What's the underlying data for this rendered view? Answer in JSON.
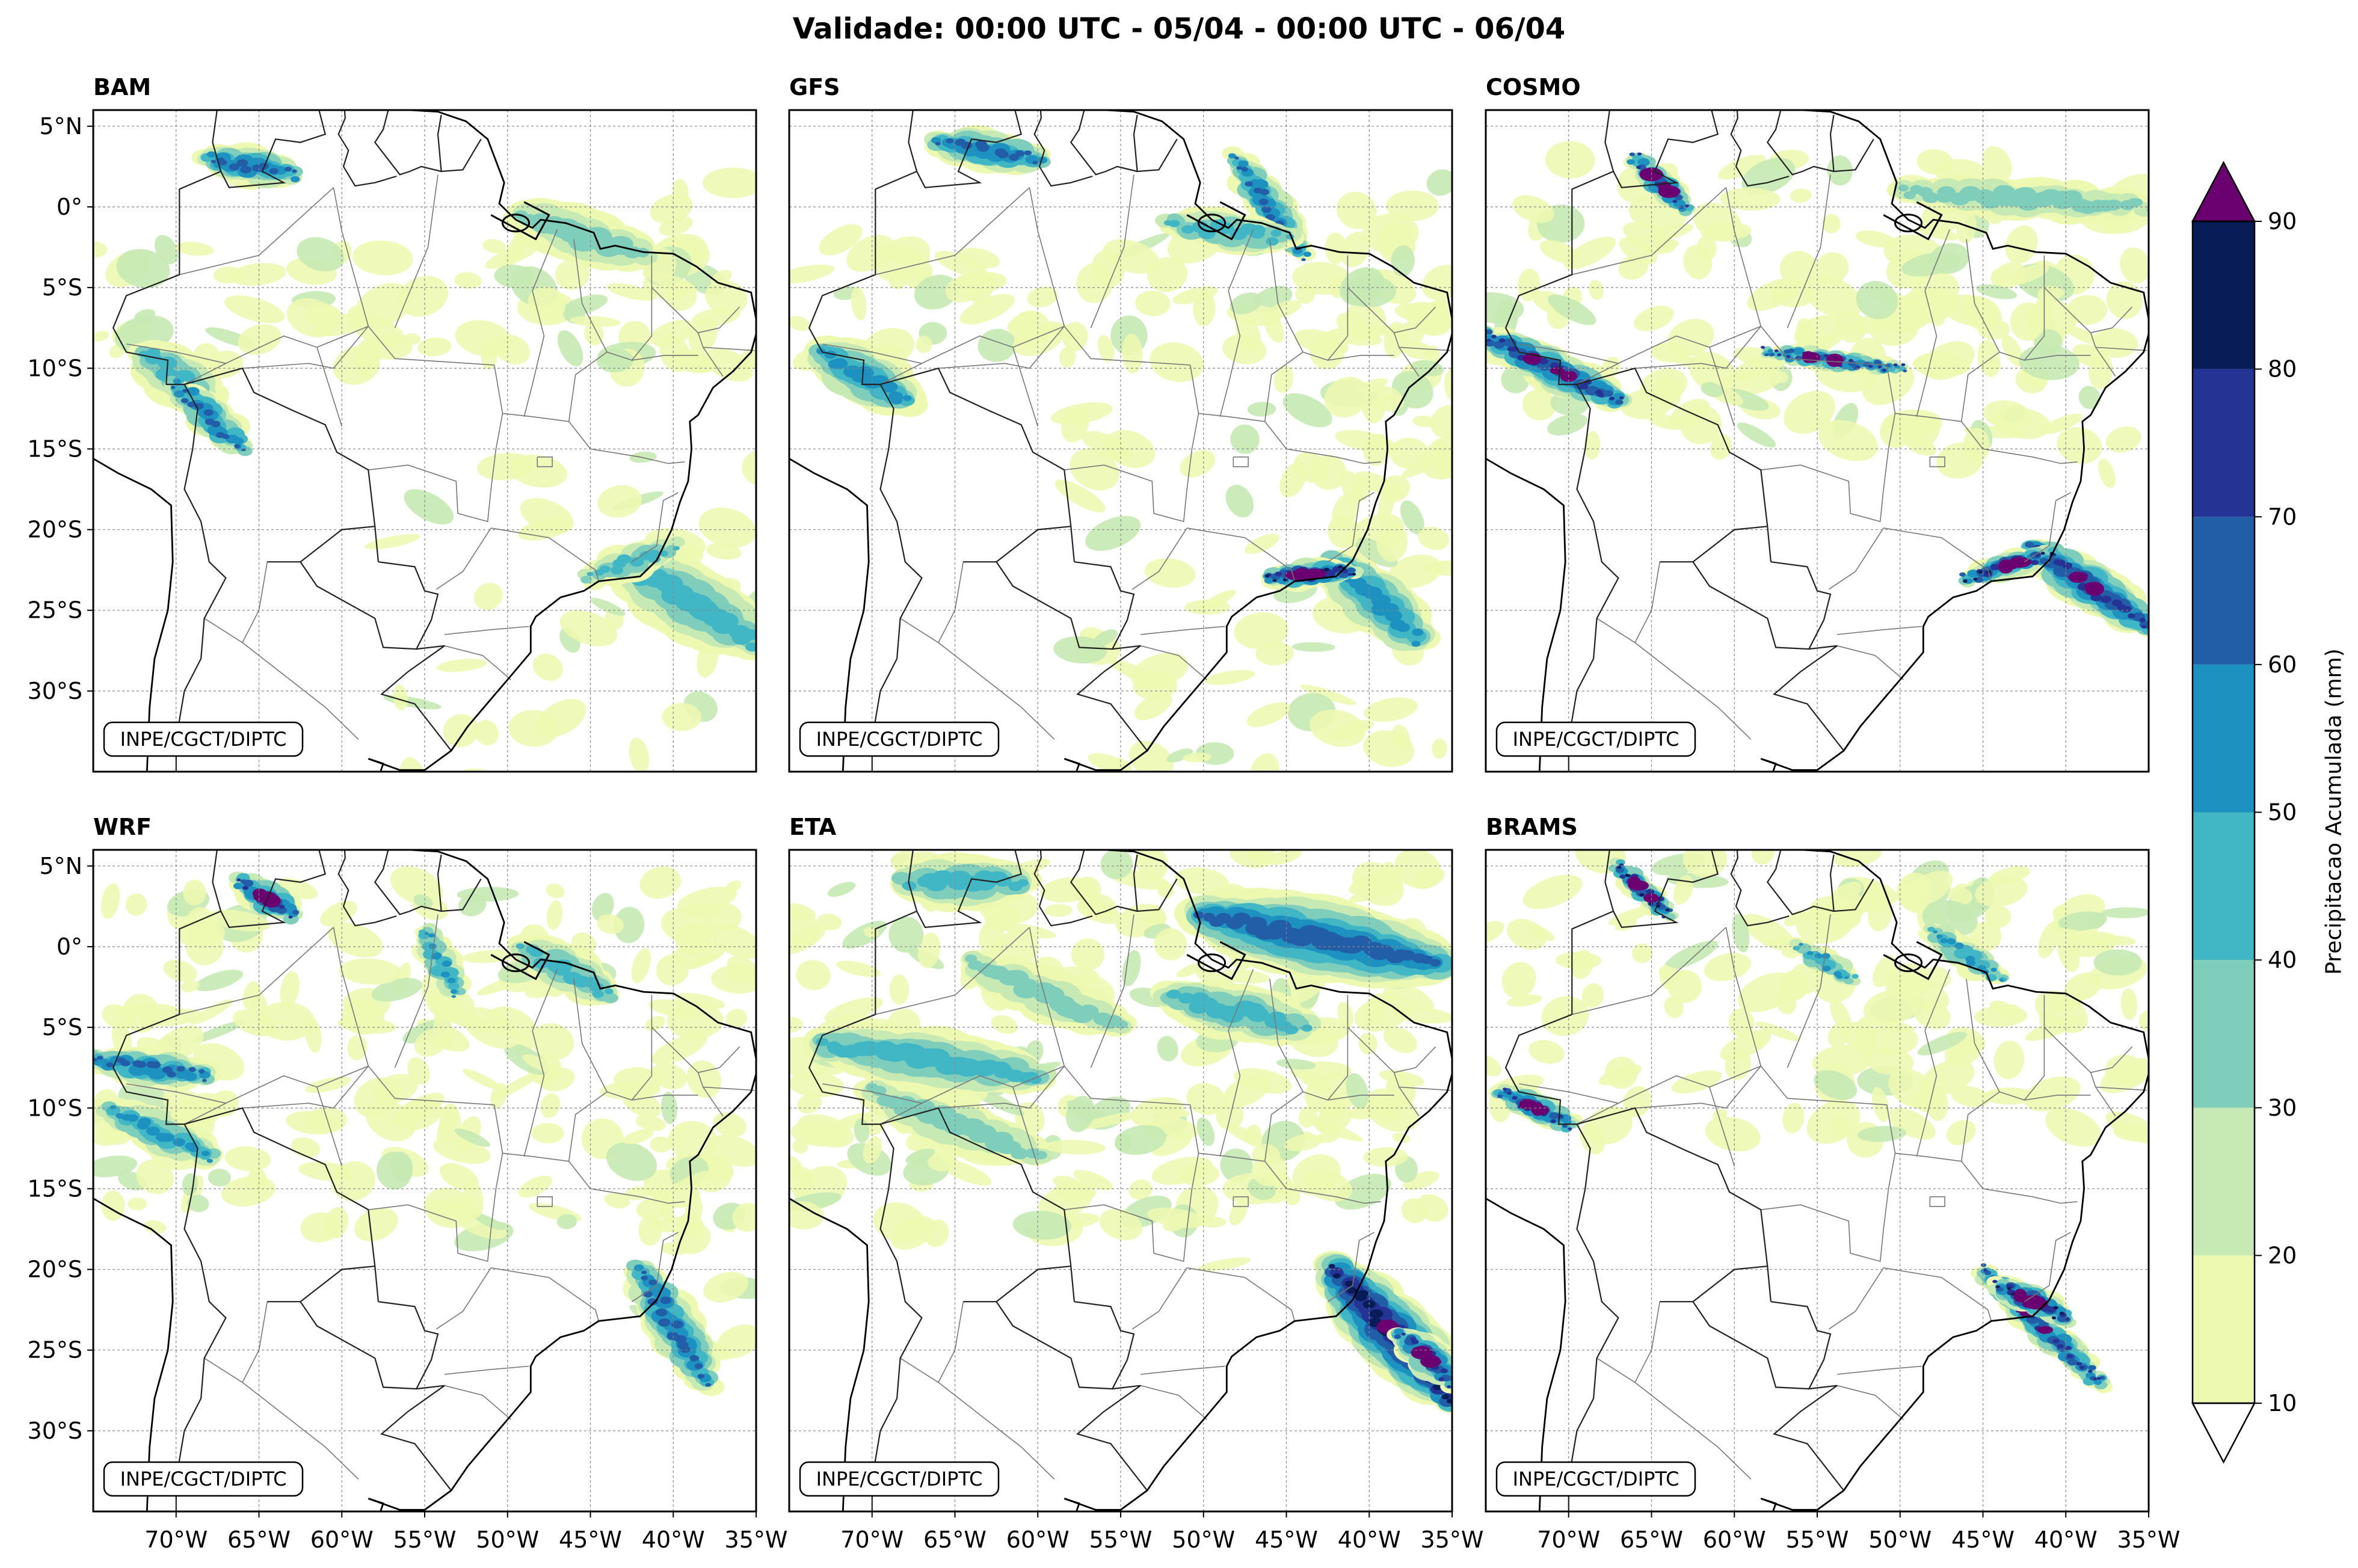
{
  "figure": {
    "title": "Validade: 00:00 UTC - 05/04 - 00:00 UTC - 06/04",
    "credit": "INPE/CGCT/DIPTC"
  },
  "panels": [
    {
      "id": "BAM",
      "title": "BAM"
    },
    {
      "id": "GFS",
      "title": "GFS"
    },
    {
      "id": "COSMO",
      "title": "COSMO"
    },
    {
      "id": "WRF",
      "title": "WRF"
    },
    {
      "id": "ETA",
      "title": "ETA"
    },
    {
      "id": "BRAMS",
      "title": "BRAMS"
    }
  ],
  "map": {
    "lon_range": [
      -75,
      -35
    ],
    "lat_range": [
      -35,
      6
    ],
    "lon_ticks": [
      "70°W",
      "65°W",
      "60°W",
      "55°W",
      "50°W",
      "45°W",
      "40°W",
      "35°W"
    ],
    "lat_ticks": [
      "5°N",
      "0°",
      "5°S",
      "10°S",
      "15°S",
      "20°S",
      "25°S",
      "30°S"
    ],
    "lon_tick_values": [
      -70,
      -65,
      -60,
      -55,
      -50,
      -45,
      -40,
      -35
    ],
    "lat_tick_values": [
      5,
      0,
      -5,
      -10,
      -15,
      -20,
      -25,
      -30
    ]
  },
  "colorbar": {
    "label": "Precipitacao Acumulada (mm)",
    "levels": [
      10,
      20,
      30,
      40,
      50,
      60,
      70,
      80,
      90
    ],
    "tick_labels": [
      "10",
      "20",
      "30",
      "40",
      "50",
      "60",
      "70",
      "80",
      "90"
    ],
    "colors": [
      "#edf8b1",
      "#c7e9b4",
      "#7fcdbb",
      "#41b6c4",
      "#1d91c0",
      "#225ea8",
      "#253494",
      "#081d58"
    ],
    "over_color": "#6b0070",
    "under_color": "#ffffff"
  }
}
